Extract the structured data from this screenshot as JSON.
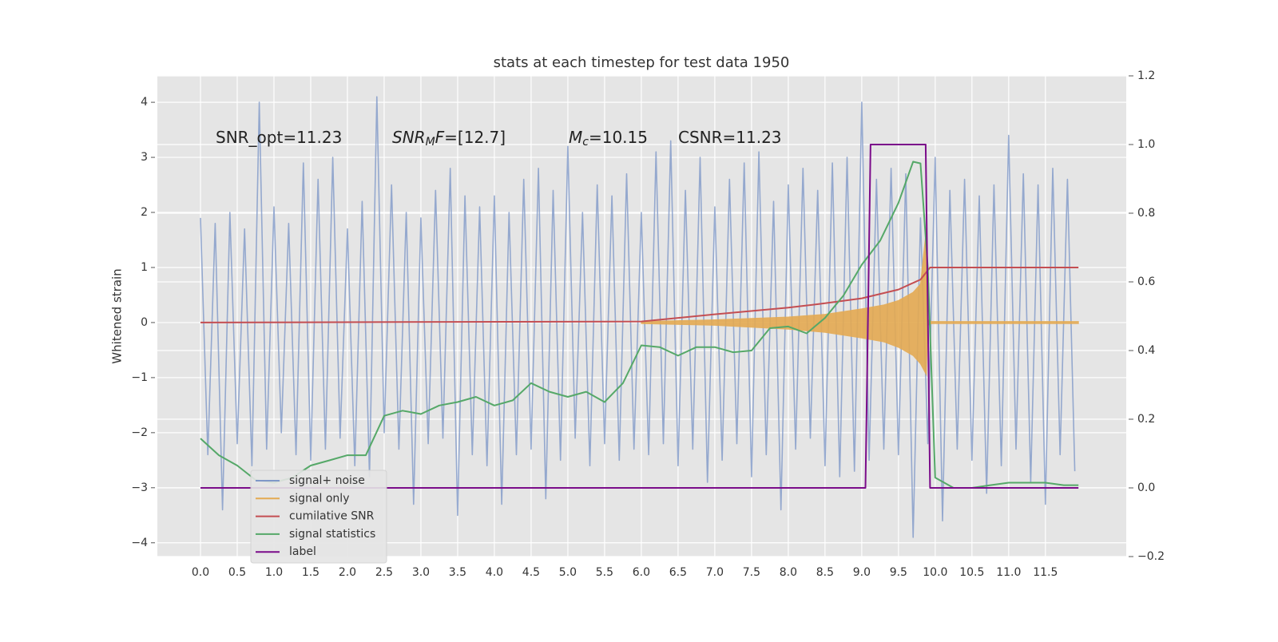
{
  "chart_data": {
    "type": "line",
    "title": "stats at each timestep for test data 1950",
    "ylabel": "Whitened strain",
    "xlim": [
      -0.587,
      12.6
    ],
    "ylim": [
      -4.25,
      4.48
    ],
    "y2lim": [
      -0.2,
      1.2
    ],
    "xticks": [
      {
        "value": 0,
        "label": "0.0"
      },
      0.5,
      {
        "value": 1,
        "label": "1.0"
      },
      1.5,
      {
        "value": 2,
        "label": "2.0"
      },
      2.5,
      {
        "value": 3,
        "label": "3.0"
      },
      3.5,
      {
        "value": 4,
        "label": "4.0"
      },
      4.5,
      {
        "value": 5,
        "label": "5.0"
      },
      5.5,
      {
        "value": 6,
        "label": "6.0"
      },
      6.5,
      {
        "value": 7,
        "label": "7.0"
      },
      7.5,
      {
        "value": 8,
        "label": "8.0"
      },
      8.5,
      {
        "value": 9,
        "label": "9.0"
      },
      9.5,
      {
        "value": 10,
        "label": "10.0"
      },
      10.5,
      {
        "value": 11,
        "label": "11.0"
      },
      11.5
    ],
    "yticks": [
      {
        "value": -4,
        "label": "−4"
      },
      {
        "value": -3,
        "label": "−3"
      },
      {
        "value": -2,
        "label": "−2"
      },
      {
        "value": -1,
        "label": "−1"
      },
      0,
      1,
      2,
      3,
      4
    ],
    "y2ticks": [
      {
        "value": -0.2,
        "label": "−0.2"
      },
      {
        "value": 0,
        "label": "0.0"
      },
      0.2,
      0.4,
      0.6,
      0.8,
      {
        "value": 1,
        "label": "1.0"
      },
      1.2
    ],
    "grid": true,
    "legend": "lower left",
    "annotations": [
      {
        "plain": "SNR_opt=11.23"
      },
      {
        "text": "SNR",
        "sub": "M",
        "rest": "F",
        "plain": "=[12.7]"
      },
      {
        "text": "M",
        "sub": "c",
        "plain": "=10.15"
      },
      {
        "plain": "CSNR=11.23"
      }
    ],
    "series": [
      {
        "name": "signal+ noise",
        "color": "#7f98c8",
        "kind": "line",
        "x": [
          0,
          0.1,
          0.2,
          0.3,
          0.4,
          0.5,
          0.6,
          0.7,
          0.8,
          0.9,
          1,
          1.1,
          1.2,
          1.3,
          1.4,
          1.5,
          1.6,
          1.7,
          1.8,
          1.9,
          2,
          2.1,
          2.2,
          2.3,
          2.4,
          2.5,
          2.6,
          2.7,
          2.8,
          2.9,
          3,
          3.1,
          3.2,
          3.3,
          3.4,
          3.5,
          3.6,
          3.7,
          3.8,
          3.9,
          4,
          4.1,
          4.2,
          4.3,
          4.4,
          4.5,
          4.6,
          4.7,
          4.8,
          4.9,
          5,
          5.1,
          5.2,
          5.3,
          5.4,
          5.5,
          5.6,
          5.7,
          5.8,
          5.9,
          6,
          6.1,
          6.2,
          6.3,
          6.4,
          6.5,
          6.6,
          6.7,
          6.8,
          6.9,
          7,
          7.1,
          7.2,
          7.3,
          7.4,
          7.5,
          7.6,
          7.7,
          7.8,
          7.9,
          8,
          8.1,
          8.2,
          8.3,
          8.4,
          8.5,
          8.6,
          8.7,
          8.8,
          8.9,
          9,
          9.1,
          9.2,
          9.3,
          9.4,
          9.5,
          9.6,
          9.7,
          9.8,
          9.9,
          10,
          10.1,
          10.2,
          10.3,
          10.4,
          10.5,
          10.6,
          10.7,
          10.8,
          10.9,
          11,
          11.1,
          11.2,
          11.3,
          11.4,
          11.5,
          11.6,
          11.7,
          11.8,
          11.9
        ],
        "values": [
          1.9,
          -2.4,
          1.8,
          -3.4,
          2.0,
          -2.2,
          1.7,
          -2.6,
          4.0,
          -2.3,
          2.1,
          -2.0,
          1.8,
          -2.4,
          2.9,
          -2.5,
          2.6,
          -2.3,
          3.0,
          -2.1,
          1.7,
          -2.6,
          2.2,
          -2.8,
          4.1,
          -2.0,
          2.5,
          -2.3,
          2.0,
          -3.3,
          1.9,
          -2.2,
          2.4,
          -2.1,
          2.8,
          -3.5,
          2.3,
          -2.4,
          2.1,
          -2.6,
          2.3,
          -3.3,
          2.0,
          -2.4,
          2.6,
          -2.3,
          2.8,
          -3.2,
          2.4,
          -2.5,
          3.2,
          -2.1,
          2.0,
          -2.6,
          2.5,
          -2.2,
          2.3,
          -2.5,
          2.7,
          -2.3,
          2.0,
          -2.4,
          3.1,
          -2.2,
          3.3,
          -2.6,
          2.4,
          -2.3,
          3.0,
          -2.9,
          2.1,
          -2.5,
          2.6,
          -2.2,
          2.9,
          -2.8,
          3.1,
          -2.4,
          2.2,
          -3.4,
          2.5,
          -2.3,
          2.8,
          -2.1,
          2.4,
          -2.6,
          2.9,
          -2.8,
          3.0,
          -2.7,
          4.0,
          -2.5,
          2.6,
          -2.3,
          2.8,
          -2.4,
          2.7,
          -3.9,
          1.9,
          -2.2,
          3.0,
          -3.6,
          2.4,
          -2.3,
          2.6,
          -2.5,
          2.3,
          -3.1,
          2.5,
          -2.6,
          3.4,
          -2.3,
          2.7,
          -2.9,
          2.5,
          -3.3,
          2.8,
          -2.4,
          2.6,
          -2.7
        ]
      },
      {
        "name": "signal only",
        "color": "#e4aa52",
        "kind": "band",
        "x": [
          6.0,
          7.0,
          8.0,
          8.5,
          9.0,
          9.3,
          9.5,
          9.7,
          9.8,
          9.88,
          9.9,
          9.95,
          11.95
        ],
        "values": [
          0.02,
          0.05,
          0.1,
          0.15,
          0.25,
          0.32,
          0.4,
          0.55,
          0.7,
          1.72,
          0.05,
          0.02,
          0.02
        ],
        "lower": [
          -0.02,
          -0.05,
          -0.12,
          -0.18,
          -0.28,
          -0.35,
          -0.45,
          -0.6,
          -0.75,
          -0.95,
          -0.05,
          -0.02,
          -0.02
        ]
      },
      {
        "name": "cumilative SNR",
        "color": "#c44e52",
        "kind": "line",
        "x": [
          0,
          6,
          7,
          8,
          8.5,
          9,
          9.5,
          9.8,
          9.93,
          10,
          11.95
        ],
        "values": [
          0,
          0.02,
          0.15,
          0.27,
          0.35,
          0.44,
          0.6,
          0.78,
          1.0,
          1.0,
          1.0
        ]
      },
      {
        "name": "signal statistics",
        "color": "#55a868",
        "kind": "line",
        "axis": "y2",
        "x": [
          0,
          0.25,
          0.5,
          0.75,
          1,
          1.25,
          1.5,
          1.75,
          2,
          2.25,
          2.5,
          2.75,
          3,
          3.25,
          3.5,
          3.75,
          4,
          4.25,
          4.5,
          4.75,
          5,
          5.25,
          5.5,
          5.75,
          6,
          6.25,
          6.5,
          6.75,
          7,
          7.25,
          7.5,
          7.75,
          8,
          8.25,
          8.5,
          8.75,
          9,
          9.25,
          9.5,
          9.7,
          9.8,
          9.9,
          10,
          10.25,
          10.5,
          10.75,
          11,
          11.25,
          11.5,
          11.75,
          11.95
        ],
        "values": [
          0.144,
          0.095,
          0.065,
          0.023,
          0.015,
          0.03,
          0.065,
          0.08,
          0.095,
          0.095,
          0.21,
          0.225,
          0.215,
          0.24,
          0.25,
          0.265,
          0.24,
          0.255,
          0.305,
          0.28,
          0.265,
          0.28,
          0.25,
          0.305,
          0.415,
          0.41,
          0.385,
          0.41,
          0.41,
          0.395,
          0.4,
          0.465,
          0.47,
          0.45,
          0.495,
          0.56,
          0.65,
          0.72,
          0.83,
          0.95,
          0.945,
          0.64,
          0.03,
          0.0,
          0.0,
          0.008,
          0.015,
          0.015,
          0.015,
          0.008,
          0.008
        ]
      },
      {
        "name": "label",
        "color": "#7b0c8a",
        "kind": "line",
        "axis": "y2",
        "x": [
          0,
          9.05,
          9.12,
          9.87,
          9.93,
          11.95
        ],
        "values": [
          0,
          0,
          1,
          1,
          0,
          0
        ]
      }
    ]
  }
}
